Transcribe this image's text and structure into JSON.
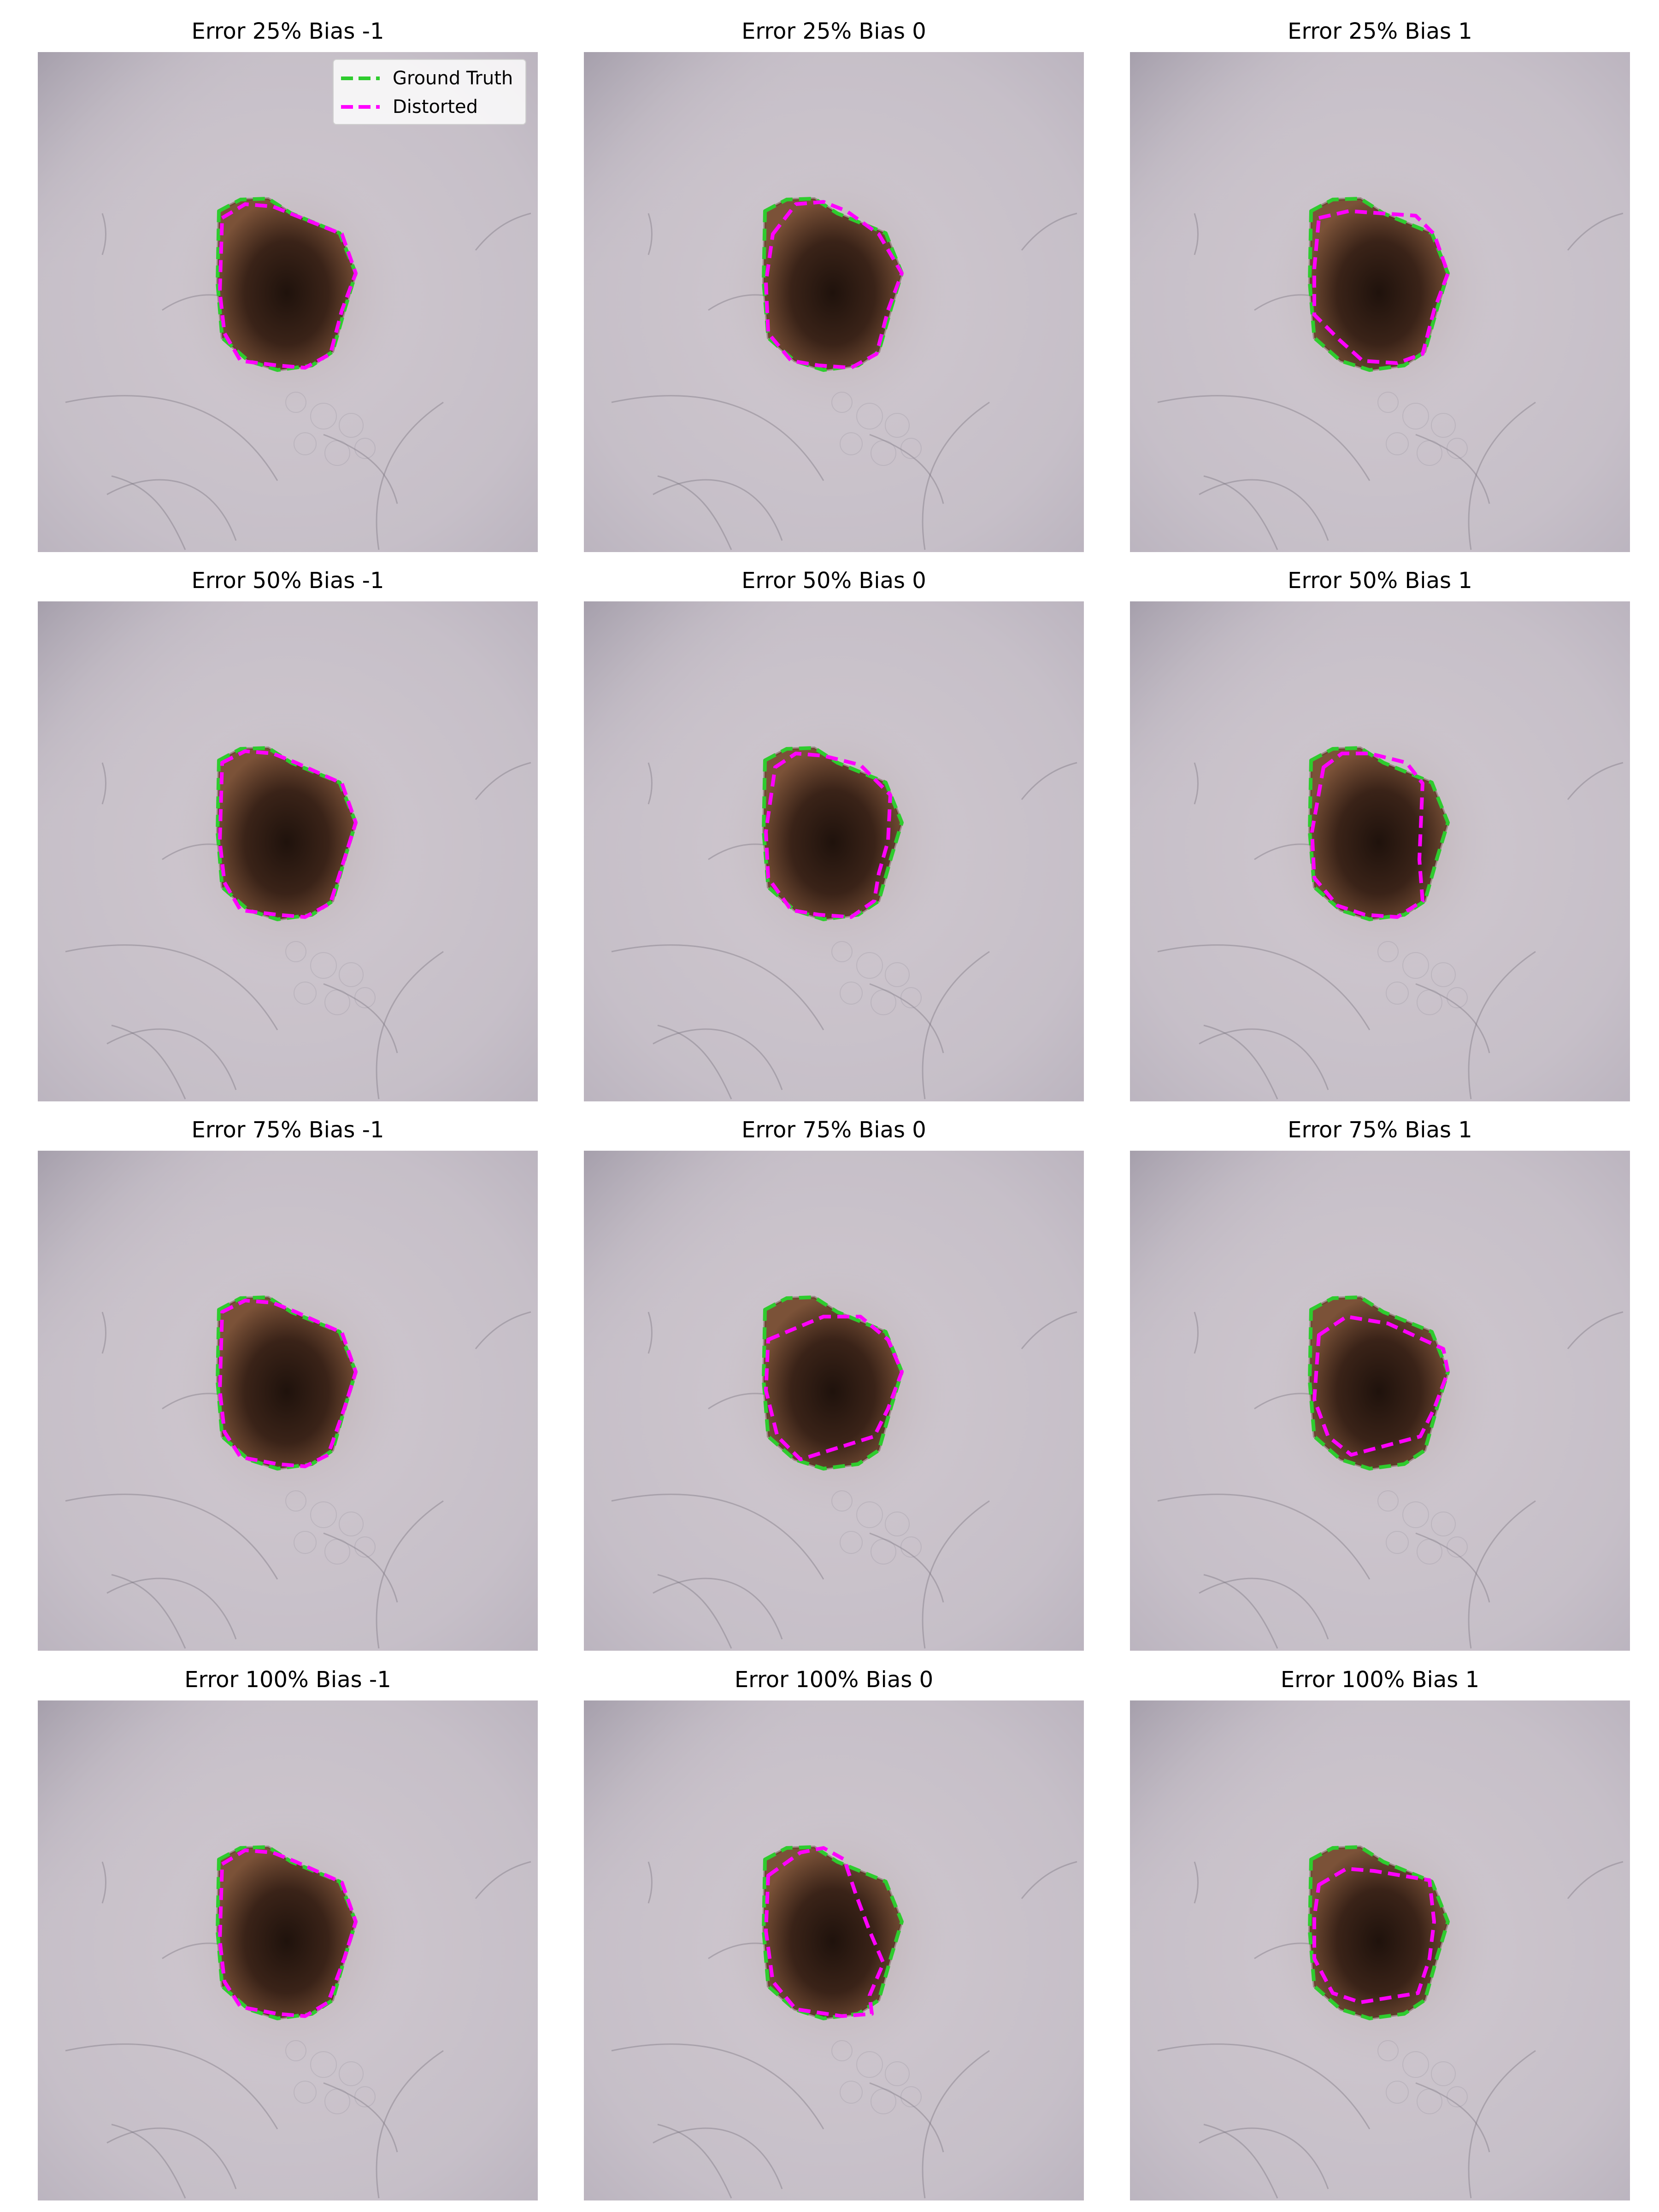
{
  "panels": [
    {
      "title": "Error 25% Bias -1"
    },
    {
      "title": "Error 25% Bias 0"
    },
    {
      "title": "Error 25% Bias 1"
    },
    {
      "title": "Error 50% Bias -1"
    },
    {
      "title": "Error 50% Bias 0"
    },
    {
      "title": "Error 50% Bias 1"
    },
    {
      "title": "Error 75% Bias -1"
    },
    {
      "title": "Error 75% Bias 0"
    },
    {
      "title": "Error 75% Bias 1"
    },
    {
      "title": "Error 100% Bias -1"
    },
    {
      "title": "Error 100% Bias 0"
    },
    {
      "title": "Error 100% Bias 1"
    }
  ],
  "legend": {
    "ground_truth": "Ground Truth",
    "distorted": "Distorted"
  },
  "colors": {
    "ground_truth": "#2ecc2e",
    "distorted": "#ff00ff",
    "skin": "#c5bec9",
    "lesion": "#3a2318"
  }
}
